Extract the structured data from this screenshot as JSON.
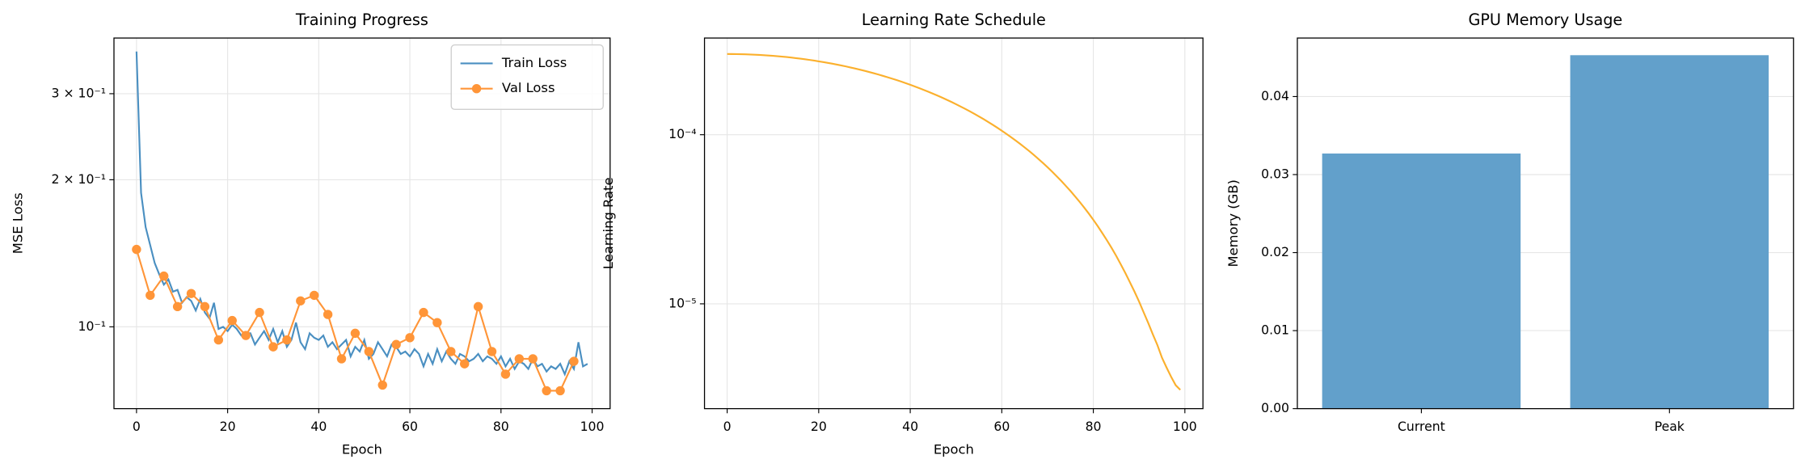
{
  "chart_data": [
    {
      "type": "line",
      "title": "Training Progress",
      "xlabel": "Epoch",
      "ylabel": "MSE Loss",
      "log_y": true,
      "grid": "both",
      "legend": "upper right",
      "xlim": [
        -4.95,
        103.95
      ],
      "xticks": [
        0,
        20,
        40,
        60,
        80,
        100
      ],
      "ylim": [
        0.068,
        0.39
      ],
      "yticks": [
        {
          "value": 0.1,
          "label": "10⁻¹"
        },
        {
          "value": 0.2,
          "label": "2 × 10⁻¹"
        },
        {
          "value": 0.3,
          "label": "3 × 10⁻¹"
        }
      ],
      "series": [
        {
          "name": "Train Loss",
          "color": "#4a8fc1",
          "markers": false,
          "x": [
            0,
            1,
            2,
            3,
            4,
            5,
            6,
            7,
            8,
            9,
            10,
            11,
            12,
            13,
            14,
            15,
            16,
            17,
            18,
            19,
            20,
            21,
            22,
            23,
            24,
            25,
            26,
            27,
            28,
            29,
            30,
            31,
            32,
            33,
            34,
            35,
            36,
            37,
            38,
            39,
            40,
            41,
            42,
            43,
            44,
            45,
            46,
            47,
            48,
            49,
            50,
            51,
            52,
            53,
            54,
            55,
            56,
            57,
            58,
            59,
            60,
            61,
            62,
            63,
            64,
            65,
            66,
            67,
            68,
            69,
            70,
            71,
            72,
            73,
            74,
            75,
            76,
            77,
            78,
            79,
            80,
            81,
            82,
            83,
            84,
            85,
            86,
            87,
            88,
            89,
            90,
            91,
            92,
            93,
            94,
            95,
            96,
            97,
            98,
            99
          ],
          "values": [
            0.366,
            0.188,
            0.16,
            0.147,
            0.135,
            0.128,
            0.122,
            0.125,
            0.118,
            0.119,
            0.112,
            0.115,
            0.113,
            0.108,
            0.114,
            0.107,
            0.104,
            0.112,
            0.099,
            0.1,
            0.098,
            0.101,
            0.099,
            0.096,
            0.097,
            0.097,
            0.092,
            0.095,
            0.098,
            0.094,
            0.099,
            0.093,
            0.098,
            0.091,
            0.094,
            0.102,
            0.093,
            0.09,
            0.097,
            0.095,
            0.094,
            0.096,
            0.091,
            0.093,
            0.09,
            0.092,
            0.094,
            0.087,
            0.091,
            0.089,
            0.094,
            0.086,
            0.088,
            0.093,
            0.09,
            0.087,
            0.092,
            0.091,
            0.088,
            0.089,
            0.087,
            0.09,
            0.088,
            0.083,
            0.088,
            0.084,
            0.09,
            0.085,
            0.089,
            0.086,
            0.084,
            0.088,
            0.087,
            0.085,
            0.086,
            0.088,
            0.085,
            0.087,
            0.086,
            0.084,
            0.087,
            0.083,
            0.086,
            0.082,
            0.085,
            0.084,
            0.082,
            0.086,
            0.083,
            0.084,
            0.081,
            0.083,
            0.082,
            0.084,
            0.08,
            0.085,
            0.082,
            0.093,
            0.083,
            0.084
          ]
        },
        {
          "name": "Val Loss",
          "color": "#ff9538",
          "markers": true,
          "x": [
            0,
            3,
            6,
            9,
            12,
            15,
            18,
            21,
            24,
            27,
            30,
            33,
            36,
            39,
            42,
            45,
            48,
            51,
            54,
            57,
            60,
            63,
            66,
            69,
            72,
            75,
            78,
            81,
            84,
            87,
            90,
            93,
            96
          ],
          "values": [
            0.144,
            0.116,
            0.127,
            0.11,
            0.117,
            0.11,
            0.094,
            0.103,
            0.096,
            0.107,
            0.091,
            0.094,
            0.113,
            0.116,
            0.106,
            0.086,
            0.097,
            0.089,
            0.076,
            0.092,
            0.095,
            0.107,
            0.102,
            0.089,
            0.084,
            0.11,
            0.089,
            0.08,
            0.086,
            0.086,
            0.074,
            0.074,
            0.085
          ]
        }
      ]
    },
    {
      "type": "line",
      "title": "Learning Rate Schedule",
      "xlabel": "Epoch",
      "ylabel": "Learning Rate",
      "log_y": true,
      "grid": "both",
      "color": "#fbb02d",
      "xlim": [
        -4.95,
        103.95
      ],
      "xticks": [
        0,
        20,
        40,
        60,
        80,
        100
      ],
      "ylim": [
        2.4e-06,
        0.000373
      ],
      "yticks": [
        {
          "value": 1e-05,
          "label": "10⁻⁵"
        },
        {
          "value": 0.0001,
          "label": "10⁻⁴"
        }
      ],
      "x": [
        0,
        1,
        2,
        3,
        4,
        5,
        6,
        7,
        8,
        9,
        10,
        11,
        12,
        13,
        14,
        15,
        16,
        17,
        18,
        19,
        20,
        21,
        22,
        23,
        24,
        25,
        26,
        27,
        28,
        29,
        30,
        31,
        32,
        33,
        34,
        35,
        36,
        37,
        38,
        39,
        40,
        41,
        42,
        43,
        44,
        45,
        46,
        47,
        48,
        49,
        50,
        51,
        52,
        53,
        54,
        55,
        56,
        57,
        58,
        59,
        60,
        61,
        62,
        63,
        64,
        65,
        66,
        67,
        68,
        69,
        70,
        71,
        72,
        73,
        74,
        75,
        76,
        77,
        78,
        79,
        80,
        81,
        82,
        83,
        84,
        85,
        86,
        87,
        88,
        89,
        90,
        91,
        92,
        93,
        94,
        95,
        96,
        97,
        98,
        99
      ],
      "values": [
        0.0003,
        0.0002999,
        0.0002997,
        0.0002993,
        0.0002988,
        0.0002982,
        0.0002974,
        0.0002964,
        0.0002953,
        0.0002941,
        0.0002927,
        0.0002912,
        0.0002896,
        0.0002878,
        0.0002859,
        0.0002838,
        0.0002816,
        0.0002793,
        0.0002769,
        0.0002743,
        0.0002716,
        0.0002688,
        0.0002659,
        0.0002629,
        0.0002598,
        0.0002565,
        0.0002532,
        0.0002497,
        0.0002462,
        0.0002425,
        0.0002388,
        0.000235,
        0.0002311,
        0.0002271,
        0.000223,
        0.0002189,
        0.0002147,
        0.0002105,
        0.0002062,
        0.0002018,
        0.0001974,
        0.0001929,
        0.0001884,
        0.0001839,
        0.0001793,
        0.0001747,
        0.0001701,
        0.0001655,
        0.0001608,
        0.0001562,
        0.0001515,
        0.0001468,
        0.0001422,
        0.0001375,
        0.0001329,
        0.0001283,
        0.0001237,
        0.0001191,
        0.0001146,
        0.0001101,
        0.0001056,
        0.0001012,
        9.68e-05,
        9.25e-05,
        8.83e-05,
        8.41e-05,
        8e-05,
        7.59e-05,
        7.19e-05,
        6.8e-05,
        6.42e-05,
        6.05e-05,
        5.68e-05,
        5.33e-05,
        4.98e-05,
        4.65e-05,
        4.32e-05,
        4.01e-05,
        3.71e-05,
        3.42e-05,
        3.14e-05,
        2.87e-05,
        2.61e-05,
        2.37e-05,
        2.14e-05,
        1.92e-05,
        1.71e-05,
        1.52e-05,
        1.34e-05,
        1.18e-05,
        1.03e-05,
        8.9e-06,
        7.7e-06,
        6.6e-06,
        5.7e-06,
        4.8e-06,
        4.2e-06,
        3.7e-06,
        3.3e-06,
        3.1e-06
      ]
    },
    {
      "type": "bar",
      "title": "GPU Memory Usage",
      "ylabel": "Memory (GB)",
      "grid": "y",
      "color": "#62a0cb",
      "categories": [
        "Current",
        "Peak"
      ],
      "values": [
        0.0327,
        0.0453
      ],
      "ylim": [
        0,
        0.0475
      ],
      "yticks": [
        {
          "value": 0,
          "label": "0.00"
        },
        {
          "value": 0.01,
          "label": "0.01"
        },
        {
          "value": 0.02,
          "label": "0.02"
        },
        {
          "value": 0.03,
          "label": "0.03"
        },
        {
          "value": 0.04,
          "label": "0.04"
        }
      ]
    }
  ]
}
